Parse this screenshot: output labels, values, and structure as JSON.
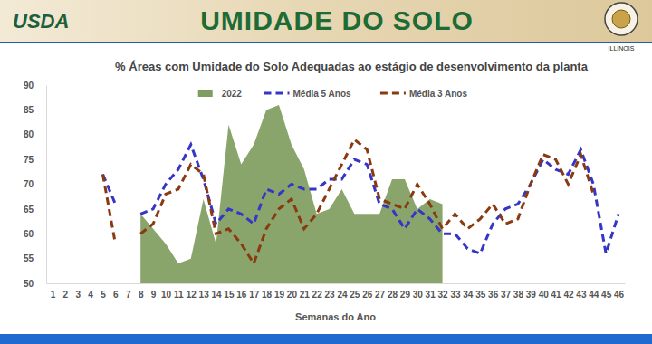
{
  "header": {
    "logo": "USDA",
    "title": "UMIDADE DO SOLO",
    "seal": "ILLINOIS"
  },
  "chart_data": {
    "type": "line",
    "title": "% Áreas com Umidade do Solo Adequadas ao estágio de desenvolvimento da planta",
    "x_label": "Semanas do Ano",
    "categories": [
      "1",
      "2",
      "3",
      "4",
      "5",
      "6",
      "7",
      "8",
      "9",
      "10",
      "11",
      "12",
      "13",
      "14",
      "15",
      "16",
      "17",
      "18",
      "19",
      "20",
      "21",
      "22",
      "23",
      "24",
      "25",
      "26",
      "27",
      "28",
      "29",
      "30",
      "31",
      "32",
      "33",
      "34",
      "35",
      "36",
      "37",
      "38",
      "39",
      "40",
      "41",
      "42",
      "43",
      "44",
      "45",
      "46"
    ],
    "series": [
      {
        "name": "2022",
        "type": "area",
        "color": "#7f9d5e",
        "values": [
          null,
          null,
          null,
          null,
          null,
          null,
          null,
          64,
          61,
          58,
          54,
          55,
          67,
          58,
          82,
          74,
          78,
          85,
          86,
          78,
          73,
          64,
          65,
          69,
          64,
          64,
          64,
          71,
          71,
          65,
          67,
          66,
          null,
          null,
          null,
          null,
          null,
          null,
          null,
          null,
          null,
          null,
          null,
          null,
          null,
          null
        ]
      },
      {
        "name": "Média 5 Anos",
        "type": "line",
        "line_style": "dashed",
        "color": "#3535c8",
        "values": [
          null,
          null,
          null,
          null,
          72,
          66,
          null,
          64,
          65,
          70,
          73,
          78,
          71,
          62,
          65,
          64,
          62,
          69,
          68,
          70,
          69,
          69,
          71,
          71,
          75,
          74,
          66,
          65,
          61,
          65,
          63,
          60,
          60,
          57,
          56,
          62,
          65,
          66,
          70,
          75,
          73,
          72,
          77,
          70,
          56,
          64
        ]
      },
      {
        "name": "Média 3 Anos",
        "type": "line",
        "line_style": "dashed",
        "color": "#8a3a10",
        "values": [
          null,
          null,
          null,
          null,
          72,
          58,
          null,
          60,
          62,
          68,
          69,
          74,
          72,
          60,
          61,
          58,
          54,
          61,
          65,
          67,
          61,
          64,
          69,
          74,
          79,
          77,
          67,
          66,
          65,
          70,
          66,
          61,
          64,
          61,
          63,
          66,
          62,
          63,
          70,
          76,
          75,
          70,
          76,
          68,
          null,
          null
        ]
      }
    ],
    "ylim": [
      50,
      90
    ],
    "yticks": [
      50,
      55,
      60,
      65,
      70,
      75,
      80,
      85,
      90
    ],
    "grid": false,
    "legend": "top"
  }
}
